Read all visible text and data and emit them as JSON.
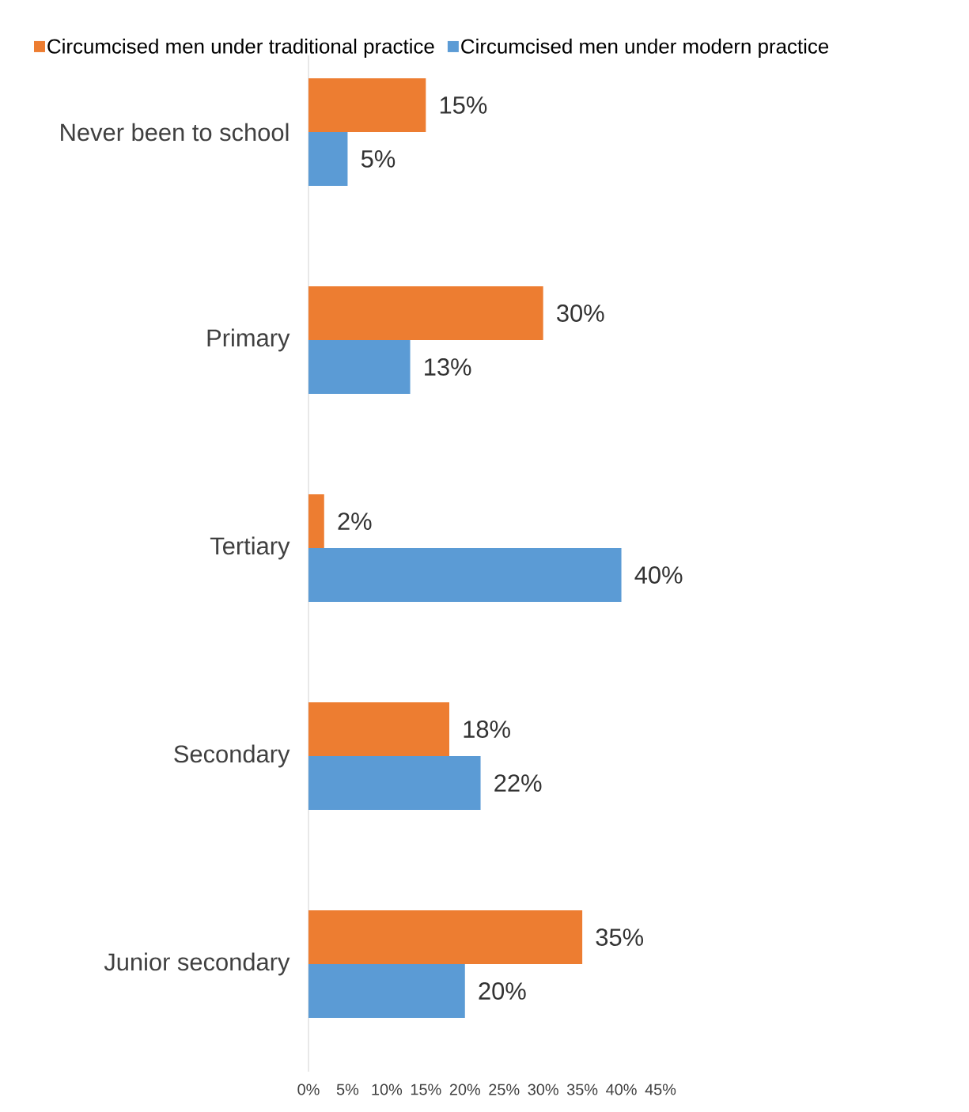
{
  "chart_data": {
    "type": "bar",
    "orientation": "horizontal",
    "categories": [
      "Never been to school",
      "Primary",
      "Tertiary",
      "Secondary",
      "Junior secondary"
    ],
    "series": [
      {
        "name": "Circumcised men under traditional practice",
        "color": "#ed7d31",
        "values": [
          15,
          30,
          2,
          18,
          35
        ],
        "value_labels": [
          "15%",
          "30%",
          "2%",
          "18%",
          "35%"
        ]
      },
      {
        "name": "Circumcised men under modern practice",
        "color": "#5b9bd5",
        "values": [
          5,
          13,
          40,
          22,
          20
        ],
        "value_labels": [
          "5%",
          "13%",
          "40%",
          "22%",
          "20%"
        ]
      }
    ],
    "xlim": [
      0,
      45
    ],
    "xticks": [
      {
        "value": 0,
        "label": "0%"
      },
      {
        "value": 5,
        "label": "5%"
      },
      {
        "value": 10,
        "label": "10%"
      },
      {
        "value": 15,
        "label": "15%"
      },
      {
        "value": 20,
        "label": "20%"
      },
      {
        "value": 25,
        "label": "25%"
      },
      {
        "value": 30,
        "label": "30%"
      },
      {
        "value": 35,
        "label": "35%"
      },
      {
        "value": 40,
        "label": "40%"
      },
      {
        "value": 45,
        "label": "45%"
      }
    ],
    "grid": false,
    "legend": "top"
  }
}
